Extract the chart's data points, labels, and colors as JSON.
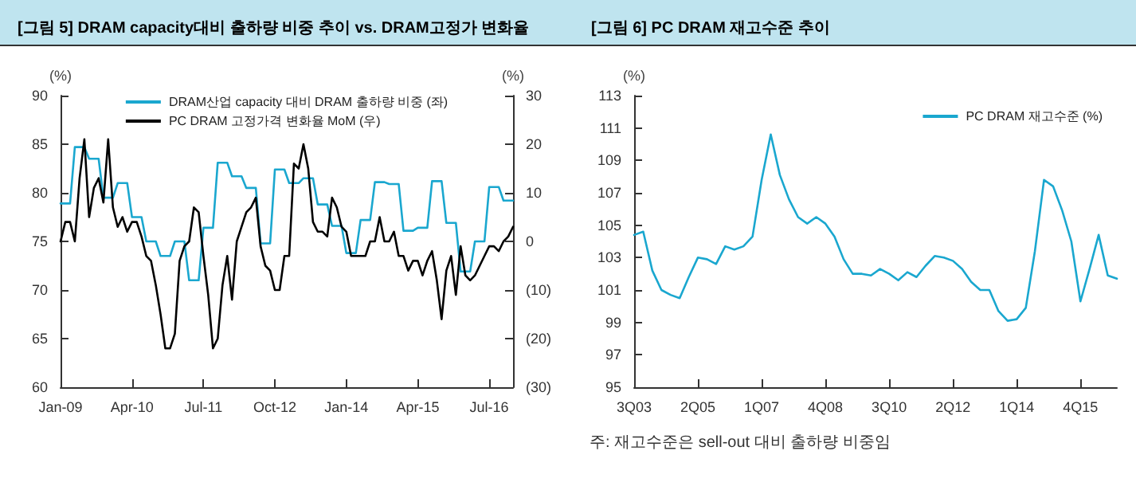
{
  "chart_data": [
    {
      "type": "line",
      "title": "[그림 5] DRAM capacity대비 출하량 비중 추이 vs. DRAM고정가 변화율",
      "ylabel": "(%)",
      "y2label": "(%)",
      "categories": [
        "Jan-09",
        null,
        null,
        null,
        null,
        null,
        null,
        null,
        null,
        null,
        null,
        null,
        null,
        null,
        null,
        "Apr-10",
        null,
        null,
        null,
        null,
        null,
        null,
        null,
        null,
        null,
        null,
        null,
        null,
        null,
        null,
        "Jul-11",
        null,
        null,
        null,
        null,
        null,
        null,
        null,
        null,
        null,
        null,
        null,
        null,
        null,
        null,
        "Oct-12",
        null,
        null,
        null,
        null,
        null,
        null,
        null,
        null,
        null,
        null,
        null,
        null,
        null,
        null,
        "Jan-14",
        null,
        null,
        null,
        null,
        null,
        null,
        null,
        null,
        null,
        null,
        null,
        null,
        null,
        null,
        "Apr-15",
        null,
        null,
        null,
        null,
        null,
        null,
        null,
        null,
        null,
        null,
        null,
        null,
        null,
        null,
        "Jul-16",
        null,
        null,
        null,
        null,
        null
      ],
      "series": [
        {
          "name": "DRAM산업 capacity 대비 DRAM 출하량 비중 (좌)",
          "color": "#1aa7cf",
          "values": [
            78.9,
            78.9,
            78.9,
            84.7,
            84.7,
            84.7,
            83.5,
            83.5,
            83.5,
            79.5,
            79.5,
            79.5,
            81,
            81,
            81,
            77.5,
            77.5,
            77.5,
            75,
            75,
            75,
            73.5,
            73.5,
            73.5,
            75,
            75,
            75,
            71,
            71,
            71,
            76.4,
            76.4,
            76.4,
            83.1,
            83.1,
            83.1,
            81.7,
            81.7,
            81.7,
            80.5,
            80.5,
            80.5,
            74.8,
            74.8,
            74.8,
            82.4,
            82.4,
            82.4,
            81,
            81,
            81,
            81.5,
            81.5,
            81.5,
            78.8,
            78.8,
            78.8,
            76.6,
            76.6,
            76.6,
            73.8,
            73.8,
            73.8,
            77.2,
            77.2,
            77.2,
            81.1,
            81.1,
            81.1,
            80.9,
            80.9,
            80.9,
            76.1,
            76.1,
            76.1,
            76.4,
            76.4,
            76.4,
            81.2,
            81.2,
            81.2,
            76.9,
            76.9,
            76.9,
            71.9,
            71.9,
            71.9,
            75,
            75,
            75,
            80.6,
            80.6,
            80.6,
            79.2,
            79.2,
            79.2
          ]
        },
        {
          "name": "PC DRAM 고정가격 변화율 MoM (우)",
          "color": "#000000",
          "axis": "y2",
          "values": [
            0,
            4,
            4,
            0,
            13,
            21,
            5,
            11,
            13,
            8,
            21,
            7,
            3,
            5,
            2,
            4,
            4,
            1,
            -3,
            -4,
            -9,
            -15,
            -22,
            -22,
            -19,
            -4,
            -1,
            0,
            7,
            6,
            -3,
            -11,
            -22,
            -20,
            -9,
            -3,
            -12,
            0,
            3,
            6,
            7,
            9,
            -1,
            -5,
            -6,
            -10,
            -10,
            -3,
            -3,
            16,
            15,
            20,
            15,
            4,
            2,
            2,
            1,
            9,
            7,
            3,
            2,
            -3,
            -3,
            -3,
            -3,
            0,
            0,
            5,
            0,
            0,
            2,
            -3,
            -3,
            -6,
            -4,
            -4,
            -7,
            -4,
            -2,
            -8,
            -16,
            -6,
            -3,
            -11,
            -1,
            -7,
            -8,
            -7,
            -5,
            -3,
            -1,
            -1,
            -2,
            0,
            1,
            3
          ]
        }
      ],
      "ylim": [
        60,
        90
      ],
      "yticks": [
        60,
        65,
        70,
        75,
        80,
        85,
        90
      ],
      "y2lim": [
        -30,
        30
      ],
      "y2ticks": [
        {
          "value": -30,
          "label": "(30)"
        },
        {
          "value": -20,
          "label": "(20)"
        },
        {
          "value": -10,
          "label": "(10)"
        },
        0,
        10,
        20,
        30
      ],
      "legend": "top",
      "grid": false,
      "marker": "none",
      "line_style": "solid"
    },
    {
      "type": "line",
      "title": "[그림 6] PC DRAM 재고수준 추이",
      "ylabel": "(%)",
      "categories": [
        "3Q03",
        null,
        null,
        null,
        null,
        null,
        null,
        "2Q05",
        null,
        null,
        null,
        null,
        null,
        null,
        "1Q07",
        null,
        null,
        null,
        null,
        null,
        null,
        "4Q08",
        null,
        null,
        null,
        null,
        null,
        null,
        "3Q10",
        null,
        null,
        null,
        null,
        null,
        null,
        "2Q12",
        null,
        null,
        null,
        null,
        null,
        null,
        "1Q14",
        null,
        null,
        null,
        null,
        null,
        null,
        "4Q15",
        null,
        null,
        null,
        null
      ],
      "series": [
        {
          "name": "PC DRAM 재고수준 (%)",
          "color": "#1aa7cf",
          "values": [
            104.4,
            104.6,
            102.2,
            101,
            100.7,
            100.5,
            101.8,
            103,
            102.9,
            102.6,
            103.7,
            103.5,
            103.7,
            104.3,
            107.8,
            110.6,
            108.1,
            106.6,
            105.5,
            105.1,
            105.5,
            105.1,
            104.3,
            102.9,
            102,
            102,
            101.9,
            102.3,
            102,
            101.6,
            102.1,
            101.8,
            102.5,
            103.1,
            103,
            102.8,
            102.3,
            101.5,
            101,
            101,
            99.7,
            99.1,
            99.2,
            99.9,
            103.4,
            107.8,
            107.4,
            105.9,
            104,
            100.3,
            102.3,
            104.4,
            101.9,
            101.7
          ]
        }
      ],
      "ylim": [
        95,
        113
      ],
      "yticks": [
        95,
        97,
        99,
        101,
        103,
        105,
        107,
        109,
        111,
        113
      ],
      "legend": "top right",
      "grid": false,
      "marker": "none",
      "line_style": "solid",
      "annotations": [
        "주: 재고수준은 sell-out 대비 출하량 비중임"
      ]
    }
  ]
}
